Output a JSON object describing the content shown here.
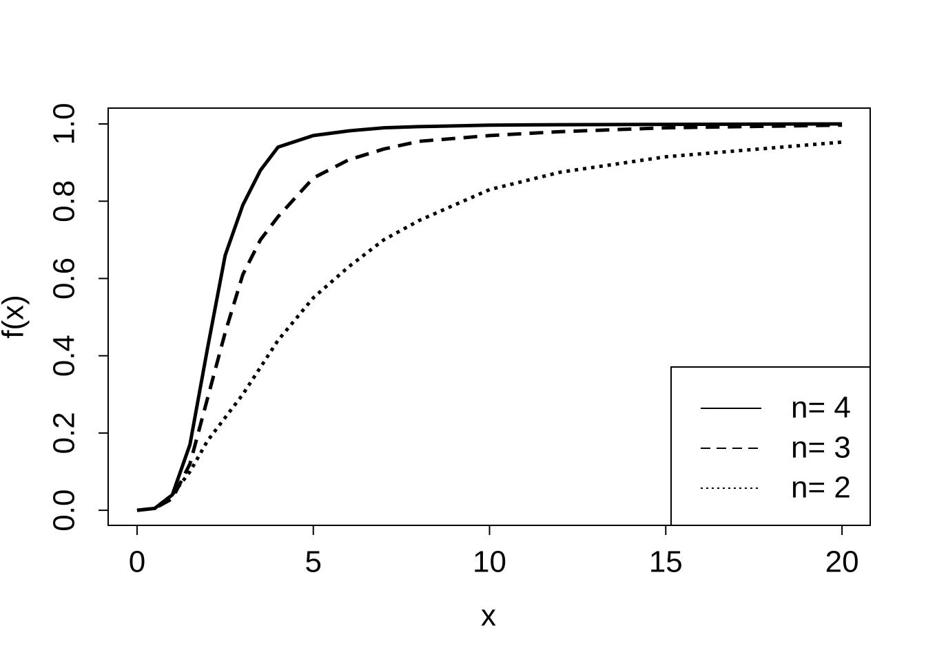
{
  "chart_data": {
    "type": "line",
    "xlabel": "x",
    "ylabel": "f(x)",
    "x": [
      0,
      0.5,
      1,
      1.5,
      2,
      2.5,
      3,
      3.5,
      4,
      5,
      6,
      7,
      8,
      10,
      12,
      15,
      20
    ],
    "series": [
      {
        "name": "n= 4",
        "color": "#000000",
        "linestyle": "solid",
        "values": [
          0,
          0.005,
          0.04,
          0.17,
          0.42,
          0.66,
          0.79,
          0.88,
          0.94,
          0.97,
          0.982,
          0.99,
          0.993,
          0.997,
          0.998,
          0.999,
          1.0
        ]
      },
      {
        "name": "n= 3",
        "color": "#000000",
        "linestyle": "dashed",
        "values": [
          0,
          0.005,
          0.03,
          0.12,
          0.29,
          0.46,
          0.61,
          0.7,
          0.76,
          0.86,
          0.907,
          0.935,
          0.955,
          0.97,
          0.98,
          0.99,
          0.997
        ]
      },
      {
        "name": "n= 2",
        "color": "#000000",
        "linestyle": "dotted",
        "values": [
          0,
          0.005,
          0.04,
          0.1,
          0.18,
          0.24,
          0.3,
          0.37,
          0.44,
          0.55,
          0.63,
          0.7,
          0.75,
          0.83,
          0.875,
          0.915,
          0.953
        ]
      }
    ],
    "xlim": [
      -0.82,
      20.8
    ],
    "ylim": [
      -0.039,
      1.041
    ],
    "xticks": [
      0,
      5,
      10,
      15,
      20
    ],
    "yticks": [
      {
        "value": 0,
        "label": "0.0"
      },
      {
        "value": 0.2,
        "label": "0.2"
      },
      {
        "value": 0.4,
        "label": "0.4"
      },
      {
        "value": 0.6,
        "label": "0.6"
      },
      {
        "value": 0.8,
        "label": "0.8"
      },
      {
        "value": 1,
        "label": "1.0"
      }
    ],
    "grid": false,
    "legend": "bottom-right"
  }
}
